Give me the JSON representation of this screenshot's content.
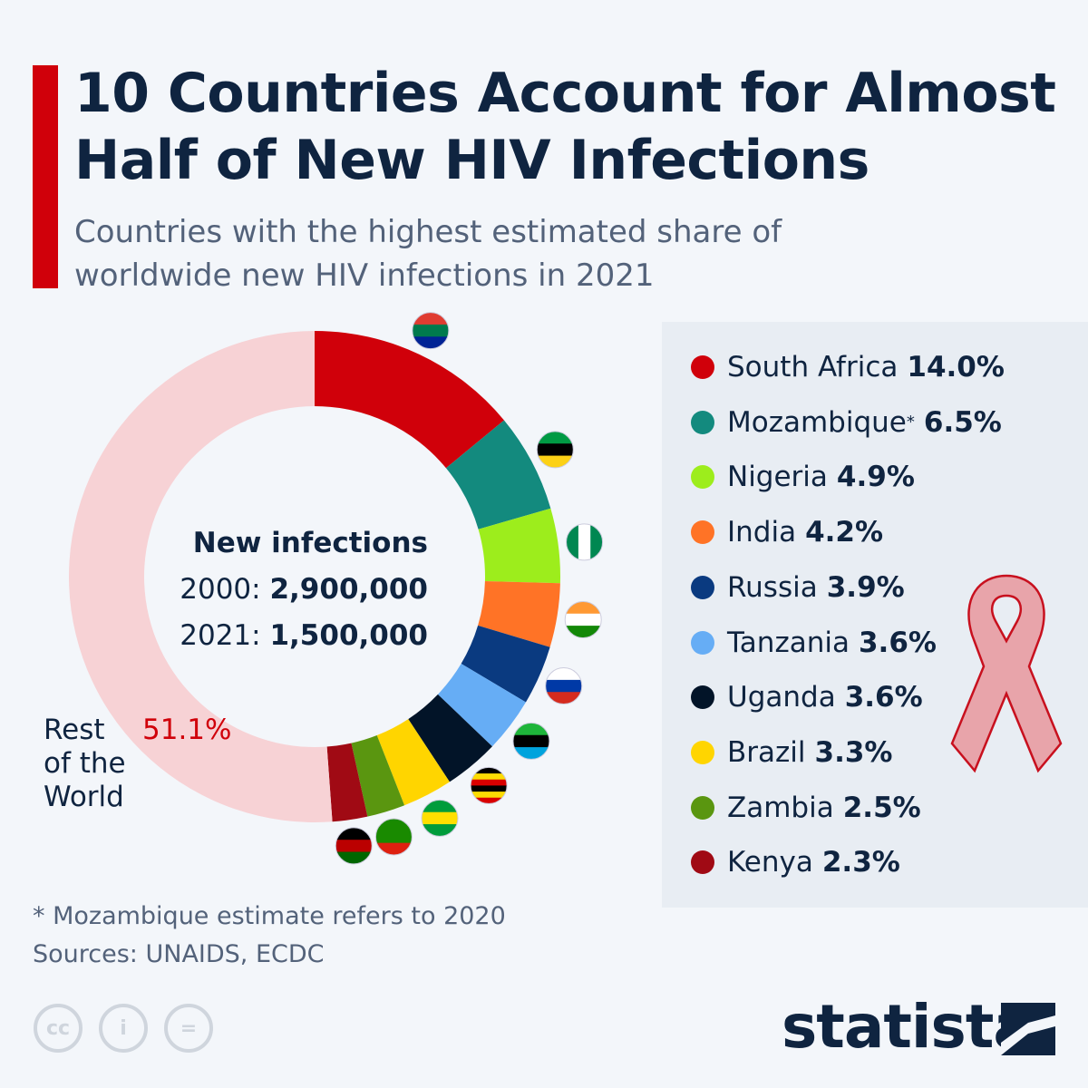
{
  "header": {
    "title": "10 Countries Account for Almost Half of New HIV Infections",
    "subtitle": "Countries with the highest estimated share of worldwide new HIV infections in 2021"
  },
  "center": {
    "heading": "New infections",
    "row1_label": "2000:",
    "row1_value": "2,900,000",
    "row2_label": "2021:",
    "row2_value": "1,500,000"
  },
  "rest": {
    "label_lines": [
      "Rest",
      "of the",
      "World"
    ],
    "value": "51.1%"
  },
  "chart_data": {
    "type": "pie",
    "donut": true,
    "title": "10 Countries Account for Almost Half of New HIV Infections",
    "subtitle": "Countries with the highest estimated share of worldwide new HIV infections in 2021",
    "unit": "%",
    "slices": [
      {
        "name": "South Africa",
        "value": 14.0,
        "label": "14.0%",
        "color": "#d0000a",
        "flag": [
          "#e03c31",
          "#007a4d",
          "#002395"
        ]
      },
      {
        "name": "Mozambique",
        "value": 6.5,
        "label": "6.5%",
        "color": "#138a7e",
        "asterisk": "*",
        "flag": [
          "#009a44",
          "#000000",
          "#fcd116"
        ]
      },
      {
        "name": "Nigeria",
        "value": 4.9,
        "label": "4.9%",
        "color": "#9ded1c",
        "flag": [
          "#008751",
          "#ffffff",
          "#008751"
        ],
        "vertical": true
      },
      {
        "name": "India",
        "value": 4.2,
        "label": "4.2%",
        "color": "#ff7326",
        "flag": [
          "#ff9933",
          "#ffffff",
          "#138808"
        ]
      },
      {
        "name": "Russia",
        "value": 3.9,
        "label": "3.9%",
        "color": "#0a3a80",
        "flag": [
          "#ffffff",
          "#0039a6",
          "#d52b1e"
        ]
      },
      {
        "name": "Tanzania",
        "value": 3.6,
        "label": "3.6%",
        "color": "#66adf5",
        "flag": [
          "#1eb53a",
          "#000000",
          "#00a3dd"
        ]
      },
      {
        "name": "Uganda",
        "value": 3.6,
        "label": "3.6%",
        "color": "#021428",
        "flag": [
          "#000000",
          "#fcdc04",
          "#d90000",
          "#000000",
          "#fcdc04",
          "#d90000"
        ]
      },
      {
        "name": "Brazil",
        "value": 3.3,
        "label": "3.3%",
        "color": "#ffd500",
        "flag": [
          "#009c3b",
          "#ffdf00",
          "#009c3b"
        ]
      },
      {
        "name": "Zambia",
        "value": 2.5,
        "label": "2.5%",
        "color": "#5a9610",
        "flag": [
          "#198a00",
          "#198a00",
          "#de2010"
        ]
      },
      {
        "name": "Kenya",
        "value": 2.3,
        "label": "2.3%",
        "color": "#a00a14",
        "flag": [
          "#000000",
          "#bb0000",
          "#006600"
        ]
      },
      {
        "name": "Rest of the World",
        "value": 51.1,
        "label": "51.1%",
        "color": "#f7d2d5"
      }
    ],
    "legend_placement": "right"
  },
  "footer": {
    "note": "* Mozambique estimate refers to 2020",
    "sources": "Sources: UNAIDS, ECDC",
    "license_icons": [
      "cc-icon",
      "attribution-icon",
      "no-derivatives-icon"
    ],
    "brand": "statista"
  }
}
